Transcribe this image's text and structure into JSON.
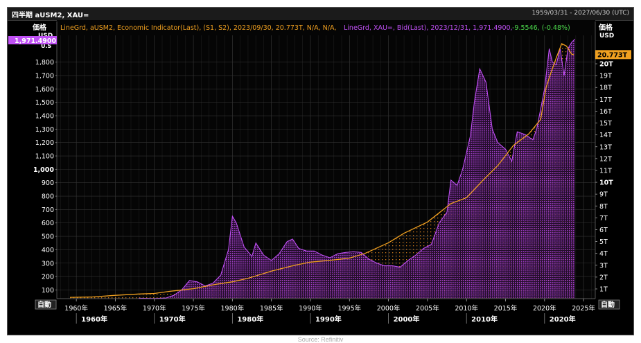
{
  "header": {
    "title": "四半期 aUSM2, XAU=",
    "date_range": "1959/03/31 - 2027/06/30 (UTC)"
  },
  "legend": {
    "m2_text": "LineGrd, aUSM2, Economic Indicator(Last), (S1, S2), 2023/09/30, 20.773T, N/A, N/A,",
    "xau_text": "LineGrd, XAU=, Bid(Last), 2023/12/31, 1,971.4900,",
    "xau_change": "-9.5546, (-0.48%)"
  },
  "axes": {
    "left_title": "価格",
    "left_unit": "USD",
    "left_unit2": "U.S",
    "right_title": "価格",
    "right_unit": "USD",
    "auto_left": "自動",
    "auto_right": "自動",
    "last_gold_label": "1,971.4900",
    "last_m2_label": "20.773T"
  },
  "footer": {
    "source": "Source: Refinitiv"
  },
  "colors": {
    "gold": "#b040e0",
    "m2": "#f0a020",
    "background": "#000000",
    "grid": "#2e2e2e",
    "change_green": "#4ddc4d"
  },
  "chart_data": {
    "type": "line",
    "left_axis": {
      "name": "XAU= (USD)",
      "ylim": [
        35,
        2000
      ],
      "ticks": [
        100,
        200,
        300,
        400,
        500,
        600,
        700,
        800,
        900,
        1000,
        1100,
        1200,
        1300,
        1400,
        1500,
        1600,
        1700,
        1800
      ],
      "tick_labels": [
        "100",
        "200",
        "300",
        "400",
        "500",
        "600",
        "700",
        "800",
        "900",
        "1,000",
        "1,100",
        "1,200",
        "1,300",
        "1,400",
        "1,500",
        "1,600",
        "1,700",
        "1,800"
      ]
    },
    "right_axis": {
      "name": "aUSM2 (USD)",
      "ylim": [
        0.18,
        22.4
      ],
      "ticks": [
        1,
        2,
        3,
        4,
        5,
        6,
        7,
        8,
        9,
        10,
        11,
        12,
        13,
        14,
        15,
        16,
        17,
        18,
        19,
        20
      ],
      "tick_labels": [
        "1T",
        "2T",
        "3T",
        "4T",
        "5T",
        "6T",
        "7T",
        "8T",
        "9T",
        "10T",
        "11T",
        "12T",
        "13T",
        "14T",
        "15T",
        "16T",
        "17T",
        "18T",
        "19T",
        "20T"
      ]
    },
    "xlim": [
      1957.5,
      2026.5
    ],
    "x_ticks": [
      1960,
      1965,
      1970,
      1975,
      1980,
      1985,
      1990,
      1995,
      2000,
      2005,
      2010,
      2015,
      2020,
      2025
    ],
    "x_tick_labels": [
      "1960年",
      "1965年",
      "1970年",
      "1975年",
      "1980年",
      "1985年",
      "1990年",
      "1995年",
      "2000年",
      "2005年",
      "2010年",
      "2015年",
      "2020年",
      "2025年"
    ],
    "x_decades": [
      1960,
      1970,
      1980,
      1990,
      2000,
      2010,
      2020
    ],
    "x_decade_labels": [
      "1960年",
      "1970年",
      "1980年",
      "1990年",
      "2000年",
      "2010年",
      "2020年"
    ],
    "series": [
      {
        "name": "XAU=",
        "axis": "left",
        "x": [
          1968.0,
          1970.0,
          1971.5,
          1972.5,
          1973.5,
          1974.5,
          1975.5,
          1976.5,
          1977.5,
          1978.5,
          1979.5,
          1980.0,
          1980.5,
          1981.5,
          1982.5,
          1983.0,
          1984.0,
          1985.0,
          1986.0,
          1987.0,
          1987.7,
          1988.5,
          1989.5,
          1990.5,
          1991.5,
          1992.5,
          1993.5,
          1994.5,
          1995.5,
          1996.5,
          1997.5,
          1998.5,
          1999.5,
          2000.5,
          2001.5,
          2002.5,
          2003.5,
          2004.5,
          2005.5,
          2006.5,
          2007.5,
          2008.0,
          2008.8,
          2009.5,
          2010.5,
          2011.0,
          2011.7,
          2012.5,
          2013.3,
          2014.0,
          2015.0,
          2015.8,
          2016.5,
          2017.5,
          2018.5,
          2019.0,
          2019.5,
          2020.0,
          2020.6,
          2021.0,
          2021.5,
          2022.0,
          2022.5,
          2023.0,
          2023.5,
          2023.9
        ],
        "values": [
          38,
          36,
          40,
          60,
          100,
          170,
          160,
          130,
          150,
          210,
          400,
          650,
          600,
          420,
          350,
          450,
          360,
          320,
          370,
          460,
          480,
          410,
          390,
          390,
          360,
          340,
          370,
          380,
          385,
          380,
          330,
          300,
          280,
          280,
          270,
          320,
          360,
          410,
          440,
          600,
          680,
          920,
          880,
          1000,
          1250,
          1500,
          1750,
          1650,
          1300,
          1200,
          1150,
          1060,
          1280,
          1260,
          1220,
          1300,
          1450,
          1600,
          1900,
          1800,
          1780,
          1900,
          1700,
          1900,
          1950,
          1971.49
        ]
      },
      {
        "name": "aUSM2",
        "axis": "right",
        "x": [
          1959.2,
          1962,
          1965,
          1968,
          1970,
          1972,
          1975,
          1978,
          1980,
          1982,
          1985,
          1988,
          1990,
          1993,
          1995,
          1997,
          2000,
          2002,
          2005,
          2008,
          2010,
          2012,
          2014,
          2016,
          2018,
          2019.5,
          2020.2,
          2020.8,
          2021.5,
          2022.2,
          2022.8,
          2023.5,
          2023.75
        ],
        "values": [
          0.29,
          0.32,
          0.46,
          0.57,
          0.62,
          0.8,
          1.02,
          1.4,
          1.6,
          1.9,
          2.5,
          3.0,
          3.26,
          3.45,
          3.6,
          4.0,
          4.9,
          5.7,
          6.65,
          8.2,
          8.7,
          10.1,
          11.4,
          13.1,
          14.1,
          15.3,
          18.0,
          19.2,
          20.5,
          21.7,
          21.5,
          20.8,
          20.773
        ]
      }
    ]
  }
}
